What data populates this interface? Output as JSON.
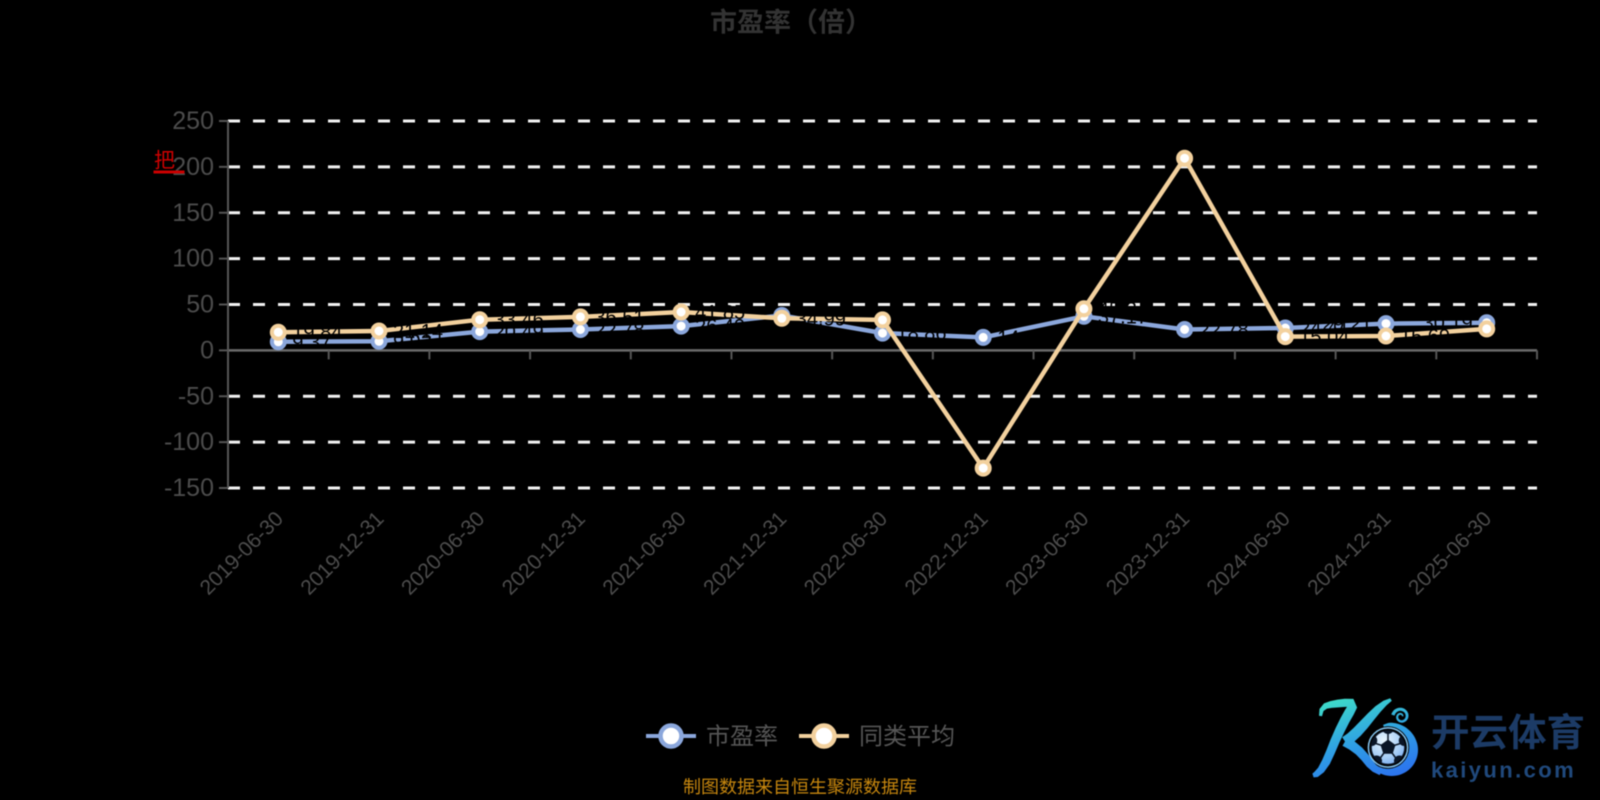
{
  "title": {
    "text": "市盈率（倍）",
    "color": "#333333"
  },
  "red_annotation": {
    "text": "把",
    "color": "#cc0000",
    "underline": true
  },
  "chart_data": {
    "type": "line",
    "title": "市盈率（倍）",
    "categories": [
      "2019-06-30",
      "2019-12-31",
      "2020-06-30",
      "2020-12-31",
      "2021-06-30",
      "2021-12-31",
      "2022-06-30",
      "2022-12-31",
      "2023-06-30",
      "2023-12-31",
      "2024-06-30",
      "2024-12-31",
      "2025-06-30"
    ],
    "series": [
      {
        "name": "市盈率",
        "color": "#8BA7DC",
        "values": [
          9.37,
          9.92,
          20.49,
          22.78,
          26.49,
          38.04,
          18.86,
          14.17,
          37.17,
          22.78,
          24.41,
          29.21,
          30.19
        ]
      },
      {
        "name": "同类平均",
        "color": "#F3D19E",
        "values": [
          19.84,
          21.14,
          33.46,
          36.51,
          41.85,
          34.99,
          33.24,
          -128.28,
          45.34,
          209.48,
          15.04,
          15.69,
          23.43
        ]
      }
    ],
    "y_ticks": [
      250,
      200,
      150,
      100,
      50,
      0,
      -50,
      -100,
      -150
    ],
    "ylim": [
      -150,
      250
    ],
    "grid": "dashed-horizontal",
    "legend_position": "bottom-center",
    "xlabel": "",
    "ylabel": ""
  },
  "legend": {
    "items": [
      {
        "label": "市盈率",
        "color": "#8BA7DC"
      },
      {
        "label": "同类平均",
        "color": "#F3D19E"
      }
    ]
  },
  "footer": {
    "source_text": "制图数据来自恒生聚源数据库",
    "source_color": "#C7870E"
  },
  "watermark": {
    "brand": "开云体育",
    "domain": "kaiyun.com",
    "logo": "kaiyun-football-k-logo",
    "brand_color": "#1C3B66",
    "domain_color": "#20497C",
    "logo_gradient": [
      "#3EDCC9",
      "#2B6BF0"
    ]
  },
  "colors": {
    "background": "#000000",
    "gridline": "#F2F2F2",
    "axis_line": "#555555",
    "zero_line": "#6B6B6B",
    "axis_label": "#4C4C4C",
    "data_label": "#000000"
  }
}
